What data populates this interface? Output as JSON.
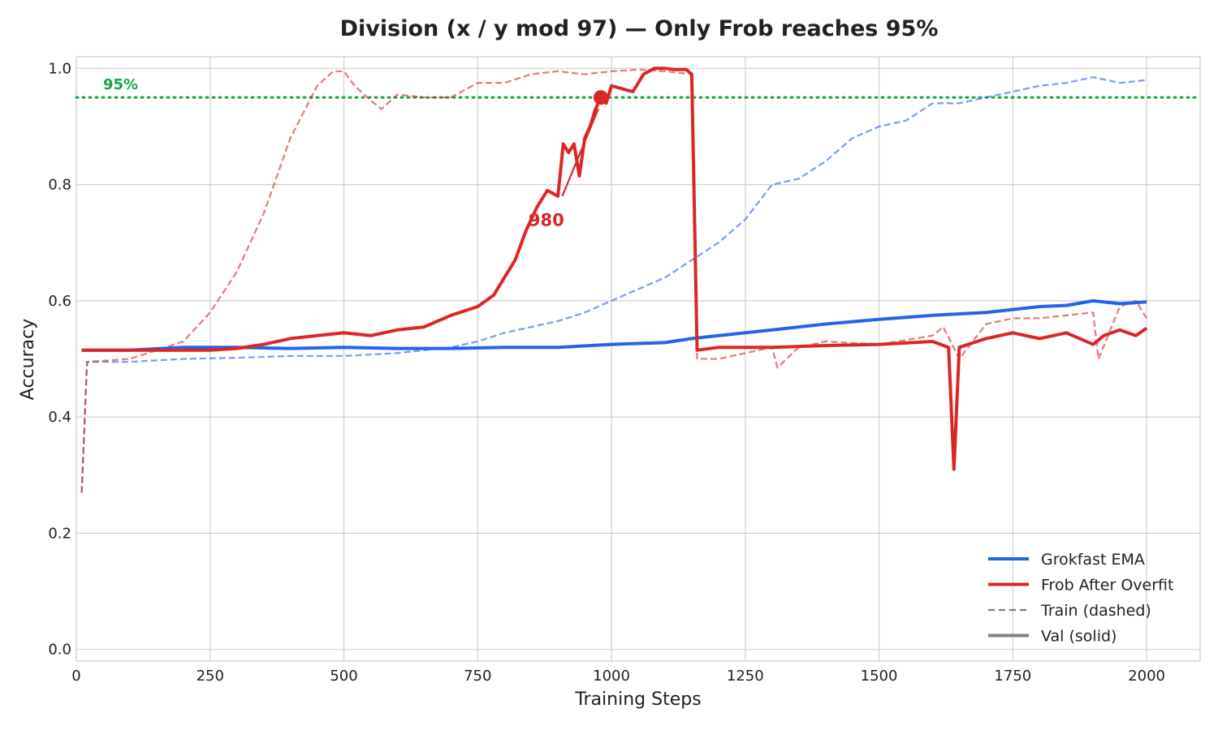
{
  "chart_data": {
    "type": "line",
    "title": "Division (x / y mod 97)  —  Only Frob reaches 95%",
    "xlabel": "Training Steps",
    "ylabel": "Accuracy",
    "xlim": [
      0,
      2100
    ],
    "ylim": [
      -0.02,
      1.02
    ],
    "xticks": [
      0,
      250,
      500,
      750,
      1000,
      1250,
      1500,
      1750,
      2000
    ],
    "yticks": [
      0.0,
      0.2,
      0.4,
      0.6,
      0.8,
      1.0
    ],
    "xtick_labels": [
      "0",
      "250",
      "500",
      "750",
      "1000",
      "1250",
      "1500",
      "1750",
      "2000"
    ],
    "ytick_labels": [
      "0.0",
      "0.2",
      "0.4",
      "0.6",
      "0.8",
      "1.0"
    ],
    "grid": true,
    "legend_position": "bottom-right",
    "legend": [
      {
        "label": "Grokfast EMA",
        "color": "#2563eb",
        "style": "solid"
      },
      {
        "label": "Frob After Overfit",
        "color": "#dc2626",
        "style": "solid"
      },
      {
        "label": "Train (dashed)",
        "color": "#808080",
        "style": "dashed"
      },
      {
        "label": "Val (solid)",
        "color": "#808080",
        "style": "solid"
      }
    ],
    "threshold": {
      "y": 0.95,
      "label": "95%",
      "color": "#16a34a"
    },
    "annotation": {
      "label": "980",
      "point": [
        980,
        0.95
      ],
      "color": "#dc2626"
    },
    "series": [
      {
        "name": "Grokfast EMA",
        "split": "val",
        "color": "#2563eb",
        "x": [
          10,
          100,
          200,
          300,
          400,
          500,
          600,
          700,
          800,
          900,
          1000,
          1100,
          1150,
          1200,
          1300,
          1400,
          1500,
          1600,
          1700,
          1750,
          1800,
          1850,
          1900,
          1950,
          2000
        ],
        "y": [
          0.515,
          0.515,
          0.52,
          0.52,
          0.518,
          0.52,
          0.518,
          0.518,
          0.52,
          0.52,
          0.525,
          0.528,
          0.535,
          0.54,
          0.55,
          0.56,
          0.568,
          0.575,
          0.58,
          0.585,
          0.59,
          0.592,
          0.6,
          0.595,
          0.598
        ]
      },
      {
        "name": "Grokfast EMA",
        "split": "train",
        "color": "#2563eb",
        "x": [
          10,
          20,
          100,
          200,
          300,
          400,
          500,
          600,
          700,
          750,
          800,
          850,
          900,
          950,
          1000,
          1050,
          1100,
          1150,
          1200,
          1250,
          1300,
          1350,
          1400,
          1450,
          1500,
          1550,
          1600,
          1650,
          1700,
          1750,
          1800,
          1850,
          1900,
          1950,
          2000
        ],
        "y": [
          0.27,
          0.495,
          0.495,
          0.5,
          0.502,
          0.505,
          0.505,
          0.51,
          0.52,
          0.53,
          0.545,
          0.555,
          0.565,
          0.58,
          0.6,
          0.62,
          0.64,
          0.67,
          0.7,
          0.74,
          0.8,
          0.81,
          0.84,
          0.88,
          0.9,
          0.91,
          0.94,
          0.94,
          0.95,
          0.96,
          0.97,
          0.975,
          0.985,
          0.975,
          0.98
        ]
      },
      {
        "name": "Frob After Overfit",
        "split": "val",
        "color": "#dc2626",
        "x": [
          10,
          100,
          200,
          250,
          300,
          350,
          400,
          450,
          500,
          550,
          600,
          650,
          700,
          750,
          780,
          800,
          820,
          840,
          860,
          880,
          900,
          910,
          920,
          930,
          940,
          950,
          960,
          970,
          980,
          990,
          1000,
          1020,
          1040,
          1060,
          1080,
          1100,
          1120,
          1140,
          1150,
          1160,
          1200,
          1300,
          1400,
          1500,
          1600,
          1630,
          1640,
          1650,
          1700,
          1750,
          1800,
          1850,
          1900,
          1920,
          1950,
          1980,
          2000
        ],
        "y": [
          0.515,
          0.515,
          0.515,
          0.515,
          0.518,
          0.525,
          0.535,
          0.54,
          0.545,
          0.54,
          0.55,
          0.555,
          0.575,
          0.59,
          0.61,
          0.64,
          0.67,
          0.72,
          0.76,
          0.79,
          0.78,
          0.87,
          0.855,
          0.87,
          0.815,
          0.88,
          0.9,
          0.93,
          0.95,
          0.94,
          0.97,
          0.965,
          0.96,
          0.99,
          1.0,
          1.0,
          0.998,
          0.998,
          0.99,
          0.515,
          0.52,
          0.52,
          0.523,
          0.525,
          0.53,
          0.52,
          0.31,
          0.52,
          0.535,
          0.545,
          0.535,
          0.545,
          0.525,
          0.54,
          0.55,
          0.54,
          0.553
        ]
      },
      {
        "name": "Frob After Overfit",
        "split": "train",
        "color": "#dc2626",
        "x": [
          10,
          20,
          100,
          200,
          250,
          300,
          350,
          400,
          450,
          480,
          500,
          520,
          550,
          570,
          600,
          650,
          700,
          750,
          800,
          850,
          900,
          950,
          1000,
          1050,
          1100,
          1150,
          1160,
          1200,
          1300,
          1310,
          1350,
          1400,
          1500,
          1600,
          1620,
          1650,
          1700,
          1750,
          1800,
          1850,
          1900,
          1910,
          1950,
          1980,
          2000
        ],
        "y": [
          0.27,
          0.495,
          0.5,
          0.53,
          0.58,
          0.65,
          0.75,
          0.88,
          0.97,
          0.995,
          0.995,
          0.97,
          0.945,
          0.93,
          0.955,
          0.95,
          0.95,
          0.975,
          0.975,
          0.99,
          0.995,
          0.99,
          0.995,
          0.998,
          0.995,
          0.99,
          0.5,
          0.5,
          0.52,
          0.485,
          0.52,
          0.53,
          0.525,
          0.54,
          0.555,
          0.5,
          0.56,
          0.57,
          0.57,
          0.575,
          0.58,
          0.5,
          0.59,
          0.6,
          0.57
        ]
      }
    ]
  }
}
